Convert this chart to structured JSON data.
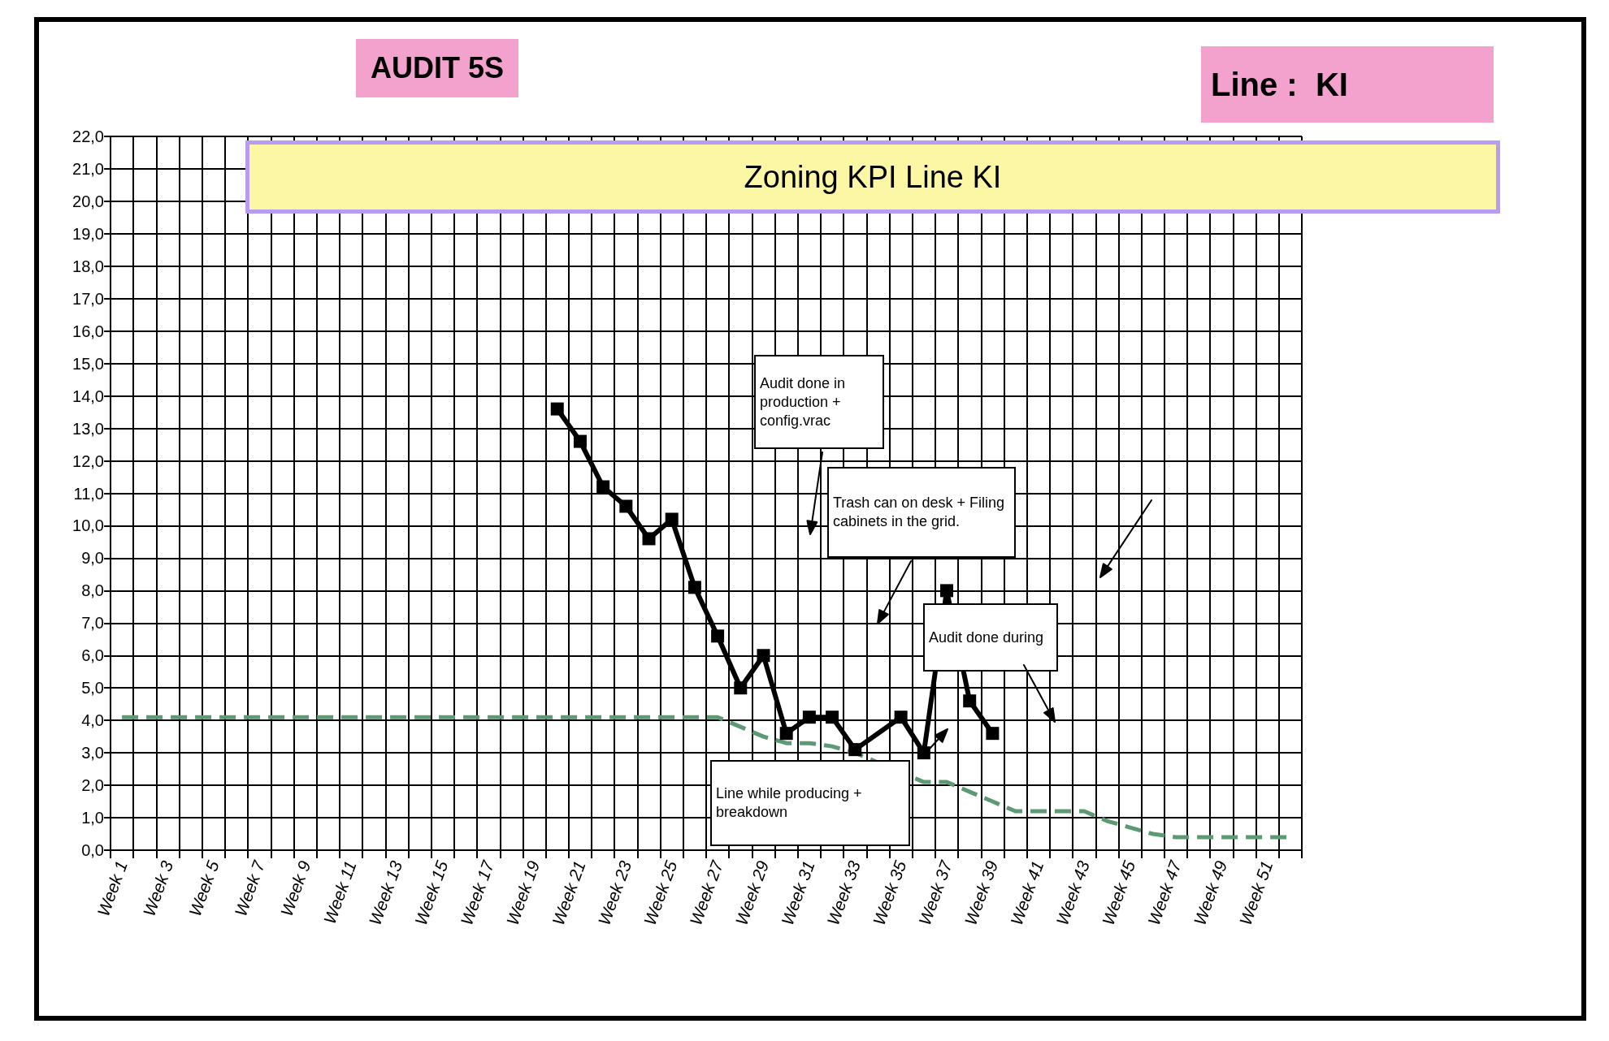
{
  "chart_data": {
    "type": "line",
    "title": "Zoning KPI Line KI",
    "categories": [
      "Week 1",
      null,
      "Week 3",
      null,
      "Week 5",
      null,
      "Week 7",
      null,
      "Week 9",
      null,
      "Week 11",
      null,
      "Week 13",
      null,
      "Week 15",
      null,
      "Week 17",
      null,
      "Week 19",
      null,
      "Week 21",
      null,
      "Week 23",
      null,
      "Week 25",
      null,
      "Week 27",
      null,
      "Week 29",
      null,
      "Week 31",
      null,
      "Week 33",
      null,
      "Week 35",
      null,
      "Week 37",
      null,
      "Week 39",
      null,
      "Week 41",
      null,
      "Week 43",
      null,
      "Week 45",
      null,
      "Week 47",
      null,
      "Week 49",
      null,
      "Week 51",
      null
    ],
    "series": [
      {
        "color": "#000000",
        "marker": "square",
        "line_style": "solid",
        "values": [
          null,
          null,
          null,
          null,
          null,
          null,
          null,
          null,
          null,
          null,
          null,
          null,
          null,
          null,
          null,
          null,
          null,
          null,
          null,
          13.6,
          12.6,
          11.2,
          10.6,
          9.6,
          10.2,
          8.1,
          6.6,
          5.0,
          6.0,
          3.6,
          4.1,
          4.1,
          3.1,
          null,
          4.1,
          3.0,
          8.0,
          4.6,
          3.6,
          null,
          null,
          null,
          null,
          null,
          null,
          null,
          null,
          null,
          null,
          null,
          null,
          null
        ]
      },
      {
        "color": "#5b9a72",
        "marker": "none",
        "line_style": "dashed",
        "values": [
          4.1,
          4.1,
          4.1,
          4.1,
          4.1,
          4.1,
          4.1,
          4.1,
          4.1,
          4.1,
          4.1,
          4.1,
          4.1,
          4.1,
          4.1,
          4.1,
          4.1,
          4.1,
          4.1,
          4.1,
          4.1,
          4.1,
          4.1,
          4.1,
          4.1,
          4.1,
          4.1,
          3.8,
          3.5,
          3.3,
          3.3,
          3.2,
          3.0,
          null,
          null,
          2.1,
          2.1,
          1.8,
          1.5,
          1.2,
          1.2,
          1.2,
          1.2,
          0.9,
          0.7,
          0.5,
          0.4,
          0.4,
          0.4,
          0.4,
          0.4,
          0.4
        ]
      }
    ],
    "ylim": [
      0,
      22
    ],
    "yticks": [
      {
        "value": 0,
        "label": "0,0"
      },
      {
        "value": 1,
        "label": "1,0"
      },
      {
        "value": 2,
        "label": "2,0"
      },
      {
        "value": 3,
        "label": "3,0"
      },
      {
        "value": 4,
        "label": "4,0"
      },
      {
        "value": 5,
        "label": "5,0"
      },
      {
        "value": 6,
        "label": "6,0"
      },
      {
        "value": 7,
        "label": "7,0"
      },
      {
        "value": 8,
        "label": "8,0"
      },
      {
        "value": 9,
        "label": "9,0"
      },
      {
        "value": 10,
        "label": "10,0"
      },
      {
        "value": 11,
        "label": "11,0"
      },
      {
        "value": 12,
        "label": "12,0"
      },
      {
        "value": 13,
        "label": "13,0"
      },
      {
        "value": 14,
        "label": "14,0"
      },
      {
        "value": 15,
        "label": "15,0"
      },
      {
        "value": 16,
        "label": "16,0"
      },
      {
        "value": 17,
        "label": "17,0"
      },
      {
        "value": 18,
        "label": "18,0"
      },
      {
        "value": 19,
        "label": "19,0"
      },
      {
        "value": 20,
        "label": "20,0"
      },
      {
        "value": 21,
        "label": "21,0"
      },
      {
        "value": 22,
        "label": "22,0"
      }
    ],
    "grid": true,
    "annotations": [
      "AUDIT 5S",
      "Line :  KI",
      "Audit done in production + config.vrac",
      "Trash can on desk + Filing cabinets in the grid.",
      "Audit done during",
      "Line while producing + breakdown"
    ]
  }
}
